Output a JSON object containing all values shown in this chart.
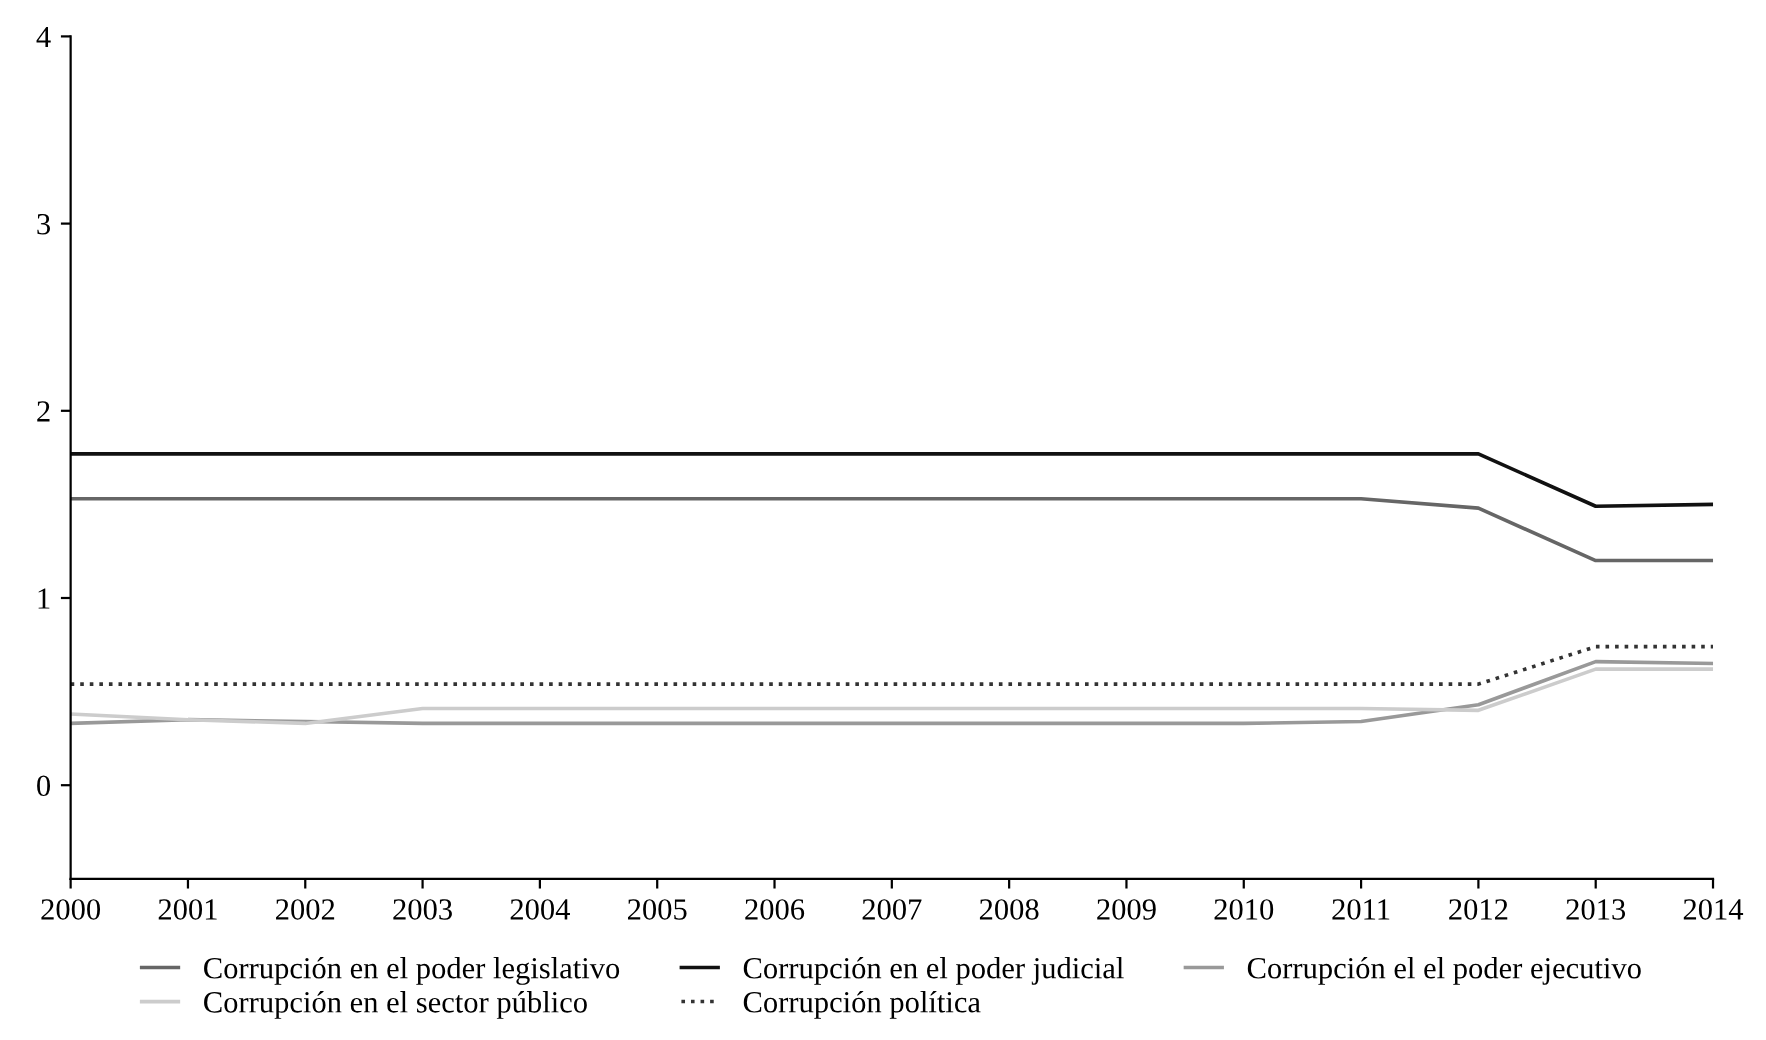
{
  "chart_data": {
    "type": "line",
    "x": [
      2000,
      2001,
      2002,
      2003,
      2004,
      2005,
      2006,
      2007,
      2008,
      2009,
      2010,
      2011,
      2012,
      2013,
      2014
    ],
    "series": [
      {
        "name": "Corrupción en el poder legislativo",
        "color": "#666666",
        "line_style": "solid",
        "values": [
          1.53,
          1.53,
          1.53,
          1.53,
          1.53,
          1.53,
          1.53,
          1.53,
          1.53,
          1.53,
          1.53,
          1.53,
          1.48,
          1.2,
          1.2
        ]
      },
      {
        "name": "Corrupción en el poder judicial",
        "color": "#111111",
        "line_style": "solid",
        "values": [
          1.77,
          1.77,
          1.77,
          1.77,
          1.77,
          1.77,
          1.77,
          1.77,
          1.77,
          1.77,
          1.77,
          1.77,
          1.77,
          1.49,
          1.5
        ]
      },
      {
        "name": "Corrupción el el poder ejecutivo",
        "color": "#999999",
        "line_style": "solid",
        "values": [
          0.33,
          0.35,
          0.34,
          0.33,
          0.33,
          0.33,
          0.33,
          0.33,
          0.33,
          0.33,
          0.33,
          0.34,
          0.43,
          0.66,
          0.65
        ]
      },
      {
        "name": "Corrupción en el sector público",
        "color": "#cccccc",
        "line_style": "solid",
        "values": [
          0.38,
          0.35,
          0.33,
          0.41,
          0.41,
          0.41,
          0.41,
          0.41,
          0.41,
          0.41,
          0.41,
          0.41,
          0.4,
          0.62,
          0.62
        ]
      },
      {
        "name": "Corrupción política",
        "color": "#333333",
        "line_style": "dotted",
        "values": [
          0.54,
          0.54,
          0.54,
          0.54,
          0.54,
          0.54,
          0.54,
          0.54,
          0.54,
          0.54,
          0.54,
          0.54,
          0.54,
          0.74,
          0.74
        ]
      }
    ],
    "xlim": [
      2000,
      2014
    ],
    "xticks": [
      2000,
      2001,
      2002,
      2003,
      2004,
      2005,
      2006,
      2007,
      2008,
      2009,
      2010,
      2011,
      2012,
      2013,
      2014
    ],
    "ylim": [
      -0.5,
      4
    ],
    "yticks": [
      0,
      1,
      2,
      3,
      4
    ],
    "grid": false,
    "legend": "bottom",
    "marker": "none"
  }
}
